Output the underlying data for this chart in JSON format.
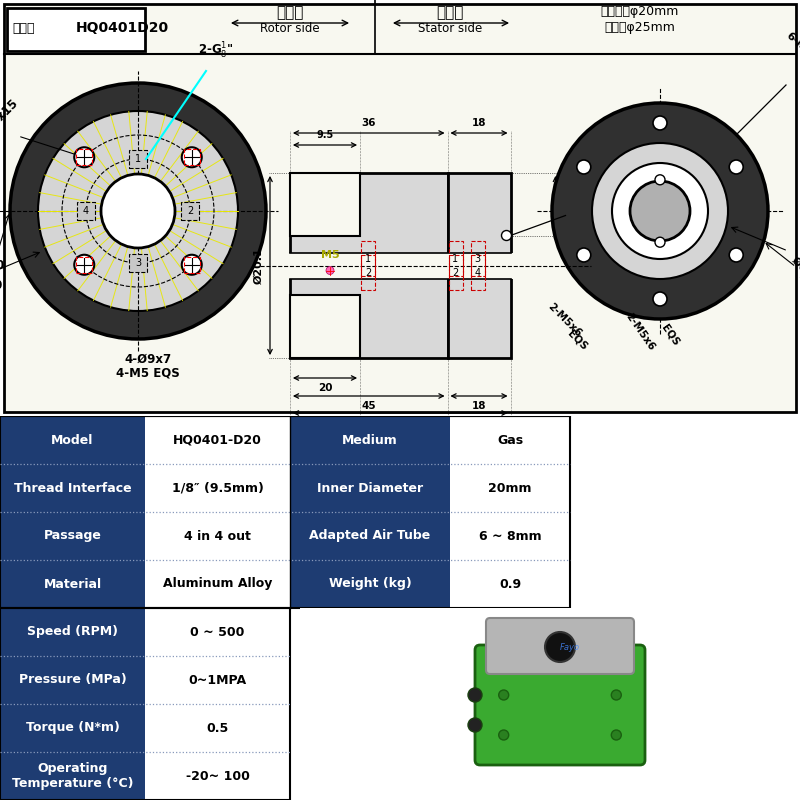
{
  "title_model": "HQ0401D20",
  "title_prefix": "型号：",
  "header_rotor_cn": "转子端",
  "header_stator_cn": "定子端",
  "header_rotor_en": "Rotor side",
  "header_stator_en": "Stator side",
  "header_note1": "标品中空φ20mm",
  "header_note2": "可改至φ25mm",
  "table_data": [
    [
      "Model",
      "HQ0401-D20",
      "Medium",
      "Gas"
    ],
    [
      "Thread Interface",
      "1/8″ (9.5mm)",
      "Inner Diameter",
      "20mm"
    ],
    [
      "Passage",
      "4 in 4 out",
      "Adapted Air Tube",
      "6 ~ 8mm"
    ],
    [
      "Material",
      "Aluminum Alloy",
      "Weight (kg)",
      "0.9"
    ],
    [
      "Speed (RPM)",
      "0 ~ 500",
      "",
      ""
    ],
    [
      "Pressure (MPa)",
      "0~1MPA",
      "",
      ""
    ],
    [
      "Torque (N*m)",
      "0.5",
      "",
      ""
    ],
    [
      "Operating\nTemperature (°C)",
      "-20~ 100",
      "",
      ""
    ]
  ],
  "dark_blue": "#1e3c72",
  "white": "#ffffff",
  "drawing_bg": "#f8f8f0"
}
